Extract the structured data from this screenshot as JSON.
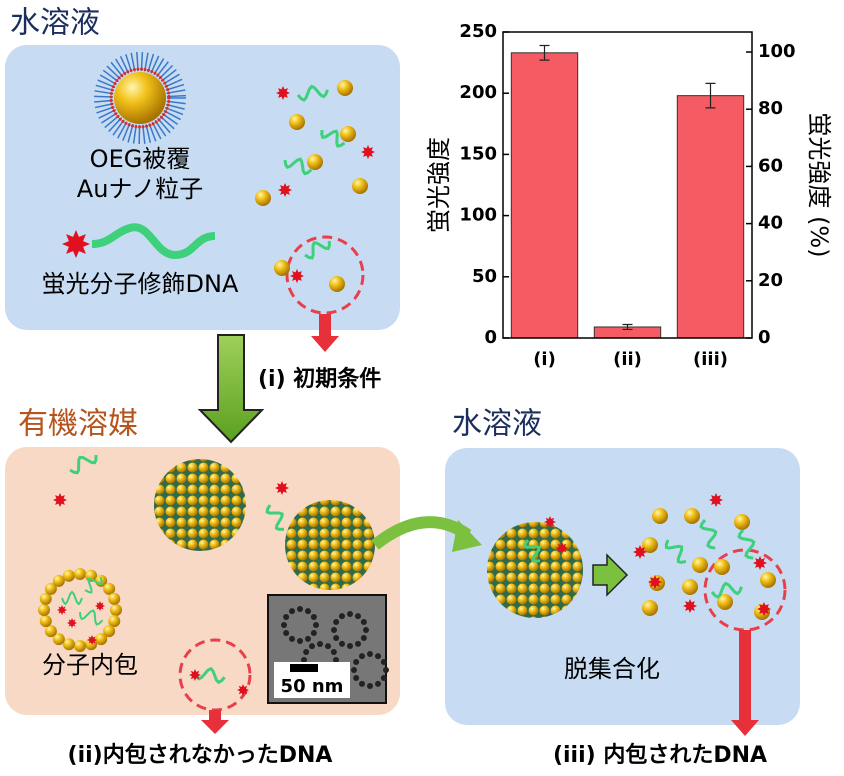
{
  "top_panel": {
    "title": "水溶液",
    "particle_label": [
      "OEG被覆",
      "Auナノ粒子"
    ],
    "dna_label": "蛍光分子修飾DNA"
  },
  "step_i": "(i) 初期条件",
  "organic_panel": {
    "title": "有機溶媒",
    "encapsulation_label": "分子内包",
    "scale_bar": "50 nm"
  },
  "step_ii": "(ii)内包されなかったDNA",
  "aqueous_panel": {
    "title": "水溶液",
    "disassembly_label": "脱集合化"
  },
  "step_iii": "(iii) 内包されたDNA",
  "chart_data": {
    "type": "bar",
    "categories": [
      "(i)",
      "(ii)",
      "(iii)"
    ],
    "values": [
      233,
      9,
      198
    ],
    "errors": [
      6,
      2,
      10
    ],
    "color": "#f45b62",
    "ylabel": "蛍光強度",
    "y2label": "蛍光強度 (%)",
    "ylim": [
      0,
      250
    ],
    "yticks": [
      0,
      50,
      100,
      150,
      200,
      250
    ],
    "y2lim": [
      0,
      107
    ],
    "y2ticks": [
      0,
      20,
      40,
      60,
      80,
      100
    ]
  }
}
